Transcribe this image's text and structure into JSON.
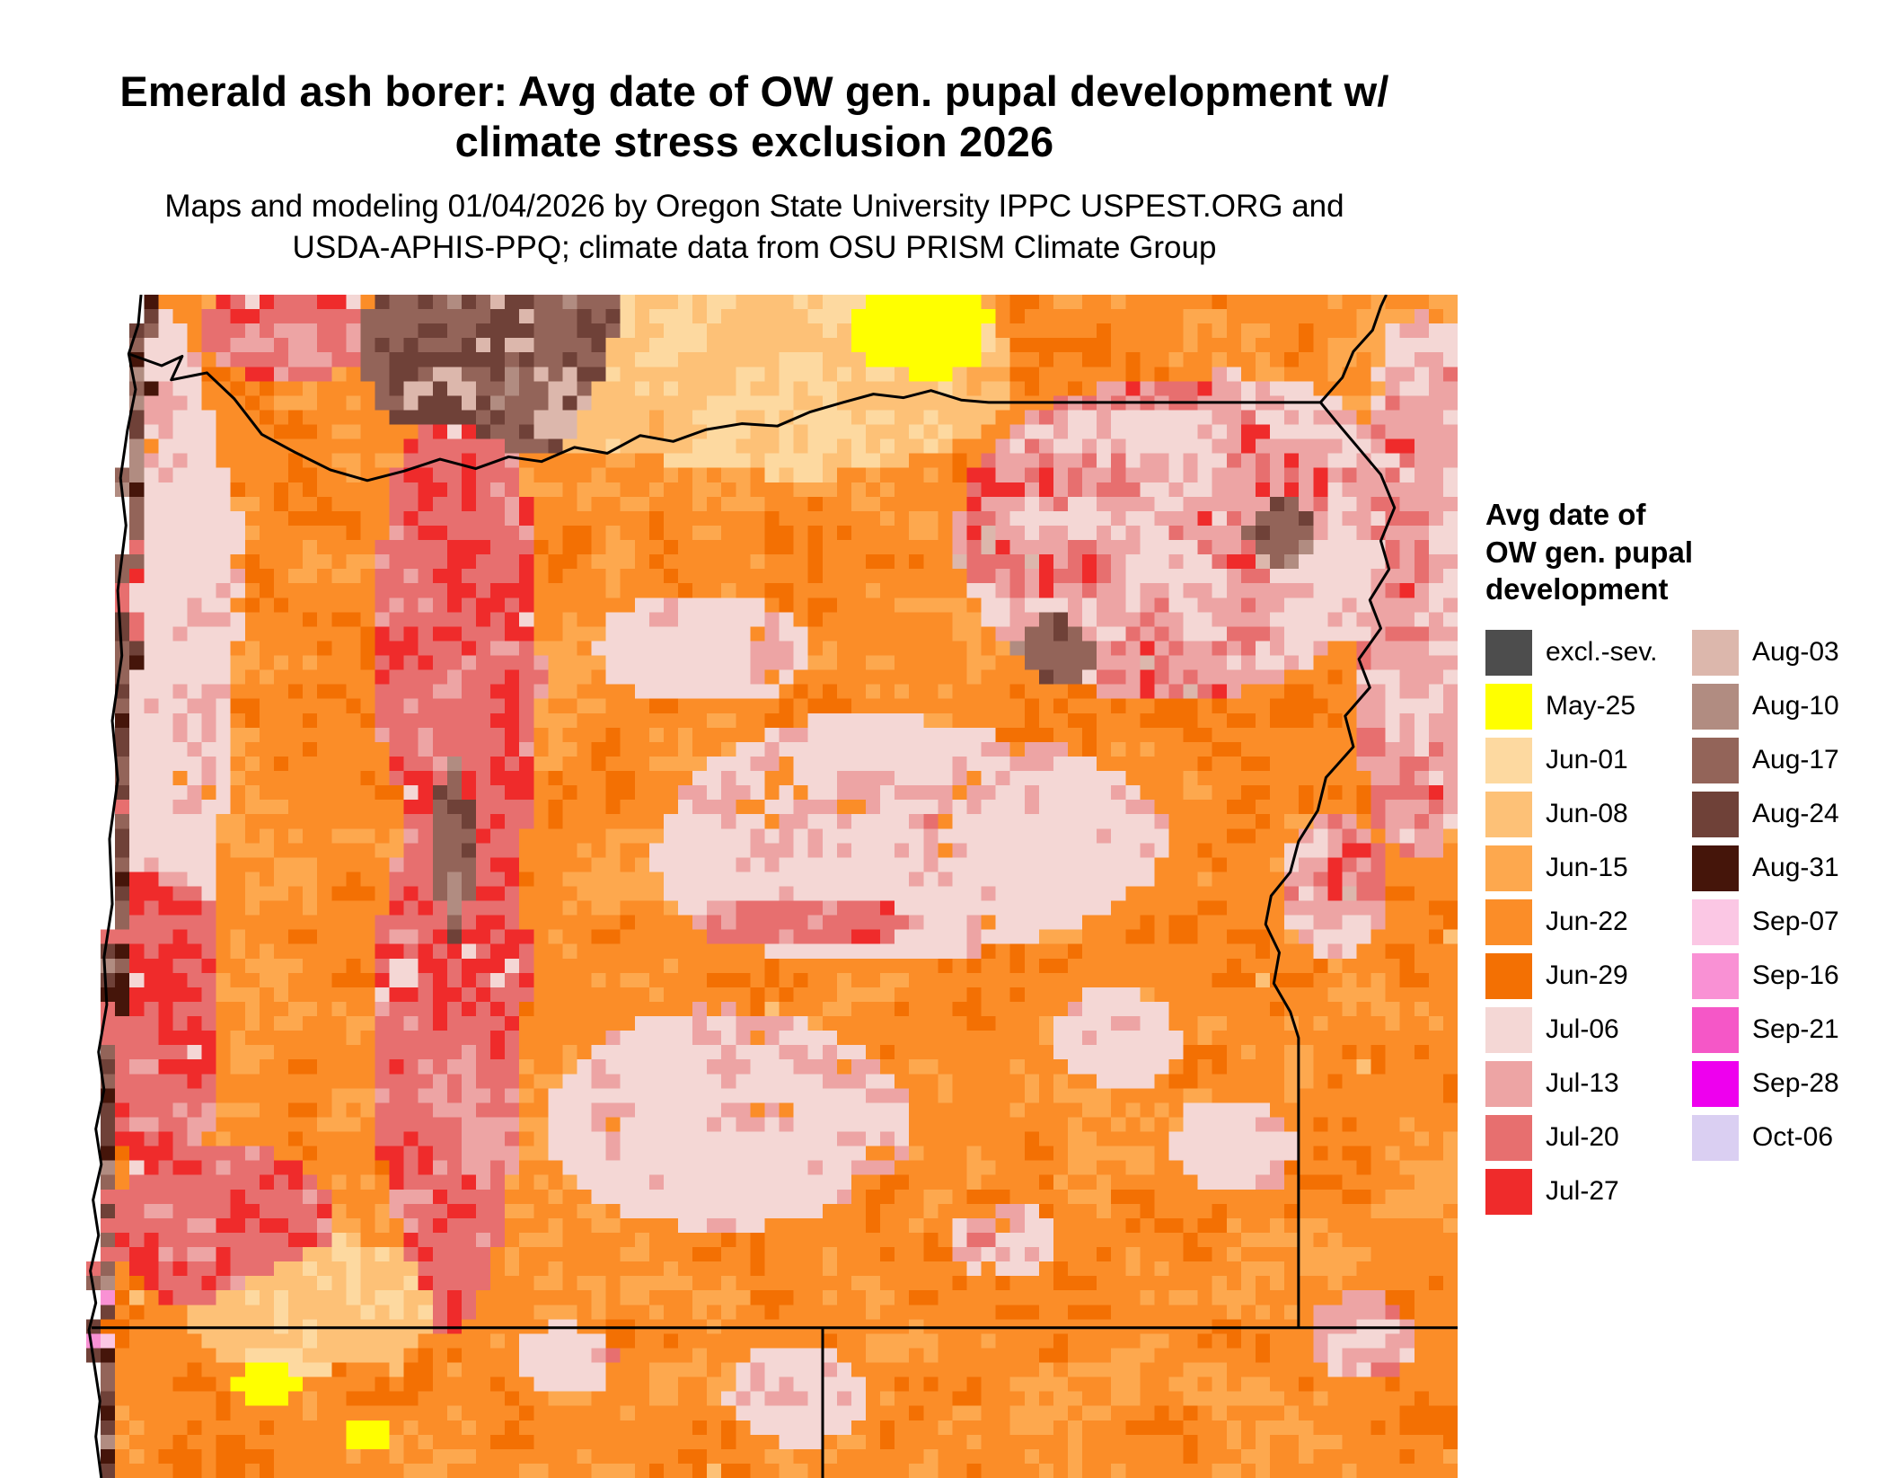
{
  "header": {
    "title_line1": "Emerald ash borer: Avg date of OW gen. pupal development w/",
    "title_line2": "climate stress exclusion 2026",
    "subtitle_line1": "Maps and modeling 01/04/2026 by Oregon State University IPPC USPEST.ORG and",
    "subtitle_line2": "USDA-APHIS-PPQ; climate data from OSU PRISM Climate Group"
  },
  "legend": {
    "title_line1": "Avg date of",
    "title_line2": "OW gen. pupal",
    "title_line3": "development",
    "columns": [
      [
        {
          "label": "excl.-sev.",
          "color_key": "excl"
        },
        {
          "label": "May-25",
          "color_key": "may25"
        },
        {
          "label": "Jun-01",
          "color_key": "jun01"
        },
        {
          "label": "Jun-08",
          "color_key": "jun08"
        },
        {
          "label": "Jun-15",
          "color_key": "jun15"
        },
        {
          "label": "Jun-22",
          "color_key": "jun22"
        },
        {
          "label": "Jun-29",
          "color_key": "jun29"
        },
        {
          "label": "Jul-06",
          "color_key": "jul06"
        },
        {
          "label": "Jul-13",
          "color_key": "jul13"
        },
        {
          "label": "Jul-20",
          "color_key": "jul20"
        },
        {
          "label": "Jul-27",
          "color_key": "jul27"
        }
      ],
      [
        {
          "label": "Aug-03",
          "color_key": "aug03"
        },
        {
          "label": "Aug-10",
          "color_key": "aug10"
        },
        {
          "label": "Aug-17",
          "color_key": "aug17"
        },
        {
          "label": "Aug-24",
          "color_key": "aug24"
        },
        {
          "label": "Aug-31",
          "color_key": "aug31"
        },
        {
          "label": "Sep-07",
          "color_key": "sep07"
        },
        {
          "label": "Sep-16",
          "color_key": "sep16"
        },
        {
          "label": "Sep-21",
          "color_key": "sep21"
        },
        {
          "label": "Sep-28",
          "color_key": "sep28"
        },
        {
          "label": "Oct-06",
          "color_key": "oct06"
        }
      ]
    ]
  },
  "chart_data": {
    "type": "heatmap",
    "title": "Emerald ash borer: Avg date of OW gen. pupal development w/ climate stress exclusion 2026",
    "legend_title": "Avg date of OW gen. pupal development",
    "categories": [
      "excl.-sev.",
      "May-25",
      "Jun-01",
      "Jun-08",
      "Jun-15",
      "Jun-22",
      "Jun-29",
      "Jul-06",
      "Jul-13",
      "Jul-20",
      "Jul-27",
      "Aug-03",
      "Aug-10",
      "Aug-17",
      "Aug-24",
      "Aug-31",
      "Sep-07",
      "Sep-16",
      "Sep-21",
      "Sep-28",
      "Oct-06"
    ],
    "legend_position": "right"
  },
  "map_render": {
    "grid": {
      "cols": 95,
      "rows": 82,
      "cell": 16
    },
    "seed": 7.31,
    "coast_band": 0.013,
    "zone_threshold": 0.3,
    "colors": {
      "excl": "#4d4d4d",
      "may25": "#ffff00",
      "jun01": "#fdd9a0",
      "jun08": "#fdc177",
      "jun15": "#fda84e",
      "jun22": "#fb8d28",
      "jun29": "#f37003",
      "jul06": "#f4d7d5",
      "jul13": "#eda4a4",
      "jul20": "#e76f6f",
      "jul27": "#ef2b2b",
      "aug03": "#dcb7ac",
      "aug10": "#b18c81",
      "aug17": "#936459",
      "aug24": "#6f4138",
      "aug31": "#45150a",
      "sep07": "#fbc7e4",
      "sep16": "#f991d4",
      "sep21": "#f557c7",
      "sep28": "#ee00ee",
      "oct06": "#dacff2",
      "ocean": "#ffffff"
    },
    "palettes": {
      "base": [
        [
          "jun15",
          0.34
        ],
        [
          "jun22",
          0.38
        ],
        [
          "jun29",
          0.22
        ],
        [
          "jun08",
          0.06
        ]
      ],
      "light_tan": [
        [
          "jun01",
          0.4
        ],
        [
          "jun08",
          0.42
        ],
        [
          "jun15",
          0.18
        ]
      ],
      "yellow": [
        [
          "may25",
          0.9
        ],
        [
          "jun01",
          0.1
        ]
      ],
      "pink_light": [
        [
          "jul06",
          0.66
        ],
        [
          "jul13",
          0.18
        ],
        [
          "jun22",
          0.1
        ],
        [
          "jul20",
          0.06
        ]
      ],
      "pink_red": [
        [
          "jul13",
          0.28
        ],
        [
          "jul20",
          0.3
        ],
        [
          "jul27",
          0.22
        ],
        [
          "jul06",
          0.2
        ]
      ],
      "brown": [
        [
          "aug10",
          0.28
        ],
        [
          "aug17",
          0.28
        ],
        [
          "aug24",
          0.18
        ],
        [
          "aug03",
          0.16
        ],
        [
          "aug31",
          0.1
        ]
      ],
      "ne_pink": [
        [
          "jul06",
          0.42
        ],
        [
          "jul13",
          0.22
        ],
        [
          "jul20",
          0.14
        ],
        [
          "jul27",
          0.1
        ],
        [
          "aug03",
          0.12
        ]
      ],
      "coast": [
        [
          "jul27",
          0.18
        ],
        [
          "jul20",
          0.16
        ],
        [
          "aug17",
          0.16
        ],
        [
          "aug24",
          0.12
        ],
        [
          "aug31",
          0.08
        ],
        [
          "aug10",
          0.1
        ],
        [
          "sep07",
          0.08
        ],
        [
          "sep16",
          0.06
        ],
        [
          "sep28",
          0.06
        ]
      ]
    },
    "blobs": [
      [
        0.3,
        0.045,
        0.095,
        0.075,
        "brown",
        1.0
      ],
      [
        0.145,
        0.03,
        0.07,
        0.05,
        "pink_red",
        0.7
      ],
      [
        0.27,
        0.3,
        0.055,
        0.2,
        "pink_red",
        0.95
      ],
      [
        0.265,
        0.63,
        0.05,
        0.24,
        "pink_red",
        0.95
      ],
      [
        0.268,
        0.5,
        0.022,
        0.26,
        "brown",
        0.9
      ],
      [
        0.06,
        0.3,
        0.05,
        0.28,
        "pink_light",
        0.85
      ],
      [
        0.055,
        0.6,
        0.045,
        0.16,
        "pink_red",
        0.8
      ],
      [
        0.1,
        0.79,
        0.085,
        0.07,
        "pink_red",
        0.8
      ],
      [
        0.5,
        0.07,
        0.16,
        0.085,
        "light_tan",
        0.9
      ],
      [
        0.6,
        0.035,
        0.05,
        0.038,
        "yellow",
        1.3
      ],
      [
        0.8,
        0.21,
        0.155,
        0.135,
        "ne_pink",
        0.9
      ],
      [
        0.865,
        0.205,
        0.048,
        0.055,
        "brown",
        0.95
      ],
      [
        0.71,
        0.295,
        0.035,
        0.04,
        "brown",
        0.75
      ],
      [
        0.6,
        0.46,
        0.2,
        0.1,
        "pink_light",
        0.8
      ],
      [
        0.55,
        0.52,
        0.12,
        0.04,
        "pink_red",
        0.65
      ],
      [
        0.47,
        0.7,
        0.14,
        0.09,
        "pink_light",
        0.85
      ],
      [
        0.97,
        0.28,
        0.05,
        0.2,
        "ne_pink",
        0.9
      ],
      [
        0.75,
        0.625,
        0.05,
        0.045,
        "pink_light",
        0.65
      ],
      [
        0.84,
        0.72,
        0.055,
        0.05,
        "pink_light",
        0.6
      ],
      [
        0.67,
        0.8,
        0.05,
        0.04,
        "pink_light",
        0.6
      ],
      [
        0.17,
        0.85,
        0.1,
        0.06,
        "light_tan",
        0.75
      ],
      [
        0.45,
        0.295,
        0.09,
        0.055,
        "pink_light",
        0.6
      ],
      [
        0.91,
        0.5,
        0.05,
        0.075,
        "ne_pink",
        0.6
      ],
      [
        0.13,
        0.92,
        0.02,
        0.015,
        "yellow",
        1.0
      ],
      [
        0.205,
        0.965,
        0.016,
        0.013,
        "yellow",
        1.0
      ],
      [
        0.52,
        0.93,
        0.06,
        0.05,
        "pink_light",
        0.6
      ],
      [
        0.35,
        0.9,
        0.05,
        0.04,
        "pink_light",
        0.55
      ],
      [
        0.93,
        0.88,
        0.05,
        0.05,
        "ne_pink",
        0.55
      ],
      [
        0.975,
        0.06,
        0.035,
        0.05,
        "ne_pink",
        0.7
      ]
    ],
    "coastline": [
      [
        0.04,
        0.0
      ],
      [
        0.038,
        0.025
      ],
      [
        0.031,
        0.05
      ],
      [
        0.036,
        0.08
      ],
      [
        0.03,
        0.115
      ],
      [
        0.025,
        0.155
      ],
      [
        0.029,
        0.195
      ],
      [
        0.023,
        0.25
      ],
      [
        0.026,
        0.305
      ],
      [
        0.019,
        0.36
      ],
      [
        0.023,
        0.41
      ],
      [
        0.017,
        0.46
      ],
      [
        0.019,
        0.515
      ],
      [
        0.013,
        0.56
      ],
      [
        0.015,
        0.6
      ],
      [
        0.009,
        0.64
      ],
      [
        0.013,
        0.672
      ],
      [
        0.007,
        0.705
      ],
      [
        0.011,
        0.735
      ],
      [
        0.005,
        0.765
      ],
      [
        0.009,
        0.795
      ],
      [
        0.003,
        0.825
      ],
      [
        0.007,
        0.852
      ],
      [
        0.002,
        0.875
      ],
      [
        0.006,
        0.905
      ],
      [
        0.01,
        0.935
      ],
      [
        0.007,
        0.965
      ],
      [
        0.011,
        1.0
      ]
    ],
    "borders": {
      "north": [
        [
          0.031,
          0.05
        ],
        [
          0.055,
          0.06
        ],
        [
          0.07,
          0.052
        ],
        [
          0.062,
          0.072
        ],
        [
          0.088,
          0.066
        ],
        [
          0.108,
          0.088
        ],
        [
          0.128,
          0.118
        ],
        [
          0.152,
          0.133
        ],
        [
          0.178,
          0.148
        ],
        [
          0.205,
          0.157
        ],
        [
          0.232,
          0.149
        ],
        [
          0.258,
          0.139
        ],
        [
          0.284,
          0.147
        ],
        [
          0.308,
          0.137
        ],
        [
          0.332,
          0.141
        ],
        [
          0.356,
          0.129
        ],
        [
          0.38,
          0.134
        ],
        [
          0.404,
          0.119
        ],
        [
          0.428,
          0.124
        ],
        [
          0.452,
          0.114
        ],
        [
          0.478,
          0.109
        ],
        [
          0.504,
          0.111
        ],
        [
          0.528,
          0.099
        ],
        [
          0.552,
          0.091
        ],
        [
          0.574,
          0.084
        ],
        [
          0.596,
          0.087
        ],
        [
          0.616,
          0.081
        ],
        [
          0.638,
          0.089
        ],
        [
          0.658,
          0.091
        ],
        [
          0.9,
          0.091
        ]
      ],
      "wa_id": [
        [
          0.9,
          0.091
        ],
        [
          0.916,
          0.07
        ],
        [
          0.924,
          0.048
        ],
        [
          0.938,
          0.03
        ],
        [
          0.944,
          0.01
        ],
        [
          0.948,
          0.0
        ]
      ],
      "snake": [
        [
          0.9,
          0.091
        ],
        [
          0.912,
          0.108
        ],
        [
          0.928,
          0.13
        ],
        [
          0.944,
          0.152
        ],
        [
          0.954,
          0.18
        ],
        [
          0.944,
          0.208
        ],
        [
          0.95,
          0.232
        ],
        [
          0.936,
          0.258
        ],
        [
          0.944,
          0.282
        ],
        [
          0.928,
          0.308
        ],
        [
          0.936,
          0.332
        ],
        [
          0.918,
          0.356
        ],
        [
          0.924,
          0.382
        ],
        [
          0.904,
          0.408
        ],
        [
          0.898,
          0.436
        ],
        [
          0.884,
          0.462
        ],
        [
          0.878,
          0.488
        ],
        [
          0.864,
          0.508
        ],
        [
          0.86,
          0.532
        ],
        [
          0.87,
          0.556
        ],
        [
          0.866,
          0.582
        ],
        [
          0.878,
          0.606
        ],
        [
          0.884,
          0.628
        ],
        [
          0.884,
          0.873
        ]
      ],
      "south": [
        [
          0.004,
          0.873
        ],
        [
          1.0,
          0.873
        ]
      ],
      "ca_nv": [
        [
          0.537,
          0.873
        ],
        [
          0.537,
          1.0
        ]
      ]
    }
  }
}
